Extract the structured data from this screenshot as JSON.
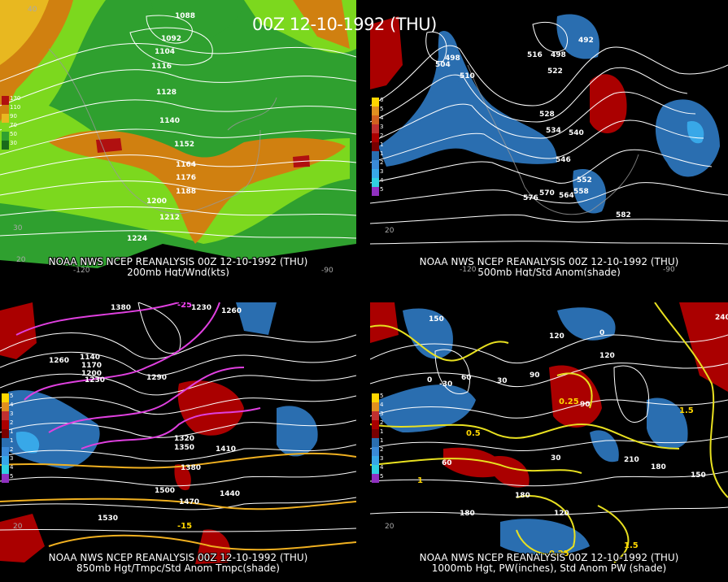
{
  "title": "00Z 12-10-1992 (THU)",
  "colors": {
    "background": "#000000",
    "contour": "#ffffff",
    "anomaly_positive": "#aa0000",
    "anomaly_negative": "#2a6eb0",
    "pw_contour": "#ffd700",
    "temp_contour": "#e040e0",
    "wind_low": "#2fa02f",
    "wind_mid": "#7cd81e",
    "wind_high": "#d08010"
  },
  "panels": [
    {
      "caption_line1": "NOAA NWS NCEP REANALYSIS 00Z 12-10-1992 (THU)",
      "caption_line2": "200mb Hgt/Wnd(kts)",
      "legend": [
        "130",
        "110",
        "90",
        "70",
        "50",
        "30"
      ],
      "contour_labels": [
        "1088",
        "1092",
        "1104",
        "1116",
        "1128",
        "1140",
        "1152",
        "1164",
        "1176",
        "1188",
        "1200",
        "1212",
        "1224"
      ],
      "axis_labels": [
        "-120",
        "-90",
        "30",
        "40",
        "20"
      ]
    },
    {
      "caption_line1": "NOAA NWS NCEP REANALYSIS 00Z 12-10-1992 (THU)",
      "caption_line2": "500mb Hgt/Std Anom(shade)",
      "legend": [
        "6",
        "5",
        "4",
        "3",
        "2",
        "1",
        "1",
        "2",
        "3",
        "4",
        "5"
      ],
      "contour_labels": [
        "504",
        "498",
        "510",
        "516",
        "498",
        "492",
        "522",
        "528",
        "534",
        "540",
        "546",
        "552",
        "558",
        "564",
        "570",
        "576",
        "582"
      ],
      "axis_labels": [
        "-120",
        "-90",
        "20"
      ]
    },
    {
      "caption_line1": "NOAA NWS NCEP REANALYSIS 00Z 12-10-1992 (THU)",
      "caption_line2": "850mb Hgt/Tmpc/Std Anom Tmpc(shade)",
      "legend": [
        "5",
        "4",
        "3",
        "2",
        "1",
        "1",
        "2",
        "3",
        "4",
        "5"
      ],
      "contour_labels": [
        "1380",
        "1260",
        "1230",
        "1140",
        "1170",
        "1200",
        "1230",
        "1260",
        "1290",
        "1320",
        "1350",
        "1380",
        "1410",
        "1440",
        "1470",
        "1500",
        "1530"
      ],
      "temp_labels": [
        "-25",
        "-15"
      ],
      "axis_labels": [
        "20"
      ]
    },
    {
      "caption_line1": "NOAA NWS NCEP REANALYSIS 00Z 12-10-1992 (THU)",
      "caption_line2": "1000mb Hgt, PW(inches), Std Anom PW (shade)",
      "legend": [
        "5",
        "4",
        "3",
        "2",
        "1",
        "1",
        "2",
        "3",
        "4",
        "5"
      ],
      "contour_labels": [
        "150",
        "120",
        "90",
        "60",
        "30",
        "0",
        "-30",
        "0",
        "30",
        "60",
        "90",
        "120",
        "150",
        "180",
        "210",
        "240",
        "180",
        "120",
        "180"
      ],
      "pw_labels": [
        "0.25",
        "0.5",
        "1",
        "1.5",
        "0.25",
        "1.5"
      ],
      "axis_labels": [
        "20"
      ]
    }
  ]
}
